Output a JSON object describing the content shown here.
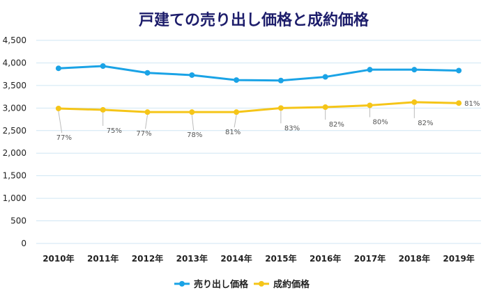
{
  "chart_data": {
    "type": "line",
    "title": "戸建ての売り出し価格と成約価格",
    "categories": [
      "2010年",
      "2011年",
      "2012年",
      "2013年",
      "2014年",
      "2015年",
      "2016年",
      "2017年",
      "2018年",
      "2019年"
    ],
    "ylim": [
      0,
      4500
    ],
    "yticks": [
      "0",
      "500",
      "1,000",
      "1,500",
      "2,000",
      "2,500",
      "3,000",
      "3,500",
      "4,000",
      "4,500"
    ],
    "grid": true,
    "legend_position": "bottom",
    "series": [
      {
        "name": "売り出し価格",
        "color": "#1aa3e6",
        "values": [
          3880,
          3930,
          3780,
          3730,
          3620,
          3610,
          3690,
          3850,
          3850,
          3830
        ]
      },
      {
        "name": "成約価格",
        "color": "#f5c518",
        "values": [
          2990,
          2960,
          2910,
          2910,
          2910,
          3000,
          3020,
          3060,
          3130,
          3110
        ],
        "data_labels": [
          "77%",
          "75%",
          "77%",
          "78%",
          "81%",
          "83%",
          "82%",
          "80%",
          "82%",
          "81%"
        ]
      }
    ]
  }
}
